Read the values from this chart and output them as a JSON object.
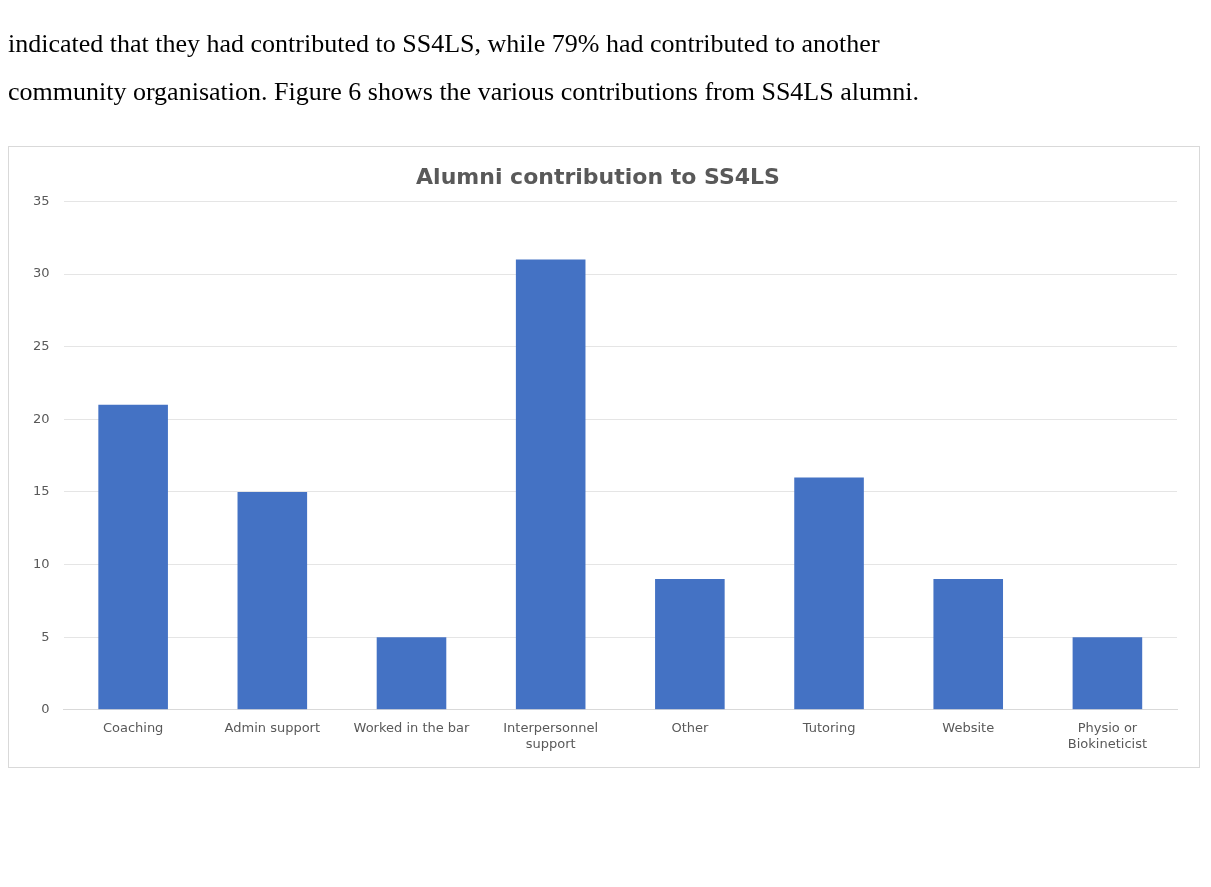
{
  "chart_data": {
    "type": "bar",
    "title": "Alumni contribution to SS4LS",
    "categories": [
      "Coaching",
      "Admin support",
      "Worked in the bar",
      "Interpersonnel support",
      "Other",
      "Tutoring",
      "Website",
      "Physio or Biokineticist"
    ],
    "values": [
      21,
      15,
      5,
      31,
      9,
      16,
      9,
      5
    ],
    "color": "#4472c4",
    "ylim": [
      0,
      35
    ],
    "yticks": [
      0,
      5,
      10,
      15,
      20,
      25,
      30,
      35
    ],
    "grid": "y",
    "legend": false,
    "annotations": [
      "indicated that they had contributed to SS4LS, while 79% had contributed to another",
      "community organisation. Figure 6 shows the various contributions from SS4LS alumni."
    ]
  }
}
